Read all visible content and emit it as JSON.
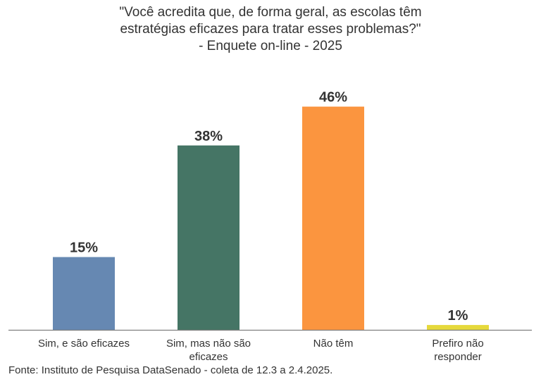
{
  "title_lines": [
    "\"Você acredita que, de forma geral, as escolas têm",
    "estratégias eficazes para tratar esses problemas?\"",
    "- Enquete on-line - 2025"
  ],
  "source": "Fonte: Instituto de Pesquisa DataSenado - coleta de 12.3 a 2.4.2025.",
  "chart_data": {
    "type": "bar",
    "categories": [
      [
        "Sim, e são eficazes"
      ],
      [
        "Sim, mas não são",
        "eficazes"
      ],
      [
        "Não têm"
      ],
      [
        "Prefiro não",
        "responder"
      ]
    ],
    "values": [
      15,
      38,
      46,
      1
    ],
    "data_labels": [
      "15%",
      "38%",
      "46%",
      "1%"
    ],
    "colors": [
      "#6688b2",
      "#457565",
      "#fb953f",
      "#e6d93b"
    ],
    "unit": "%",
    "ylim": [
      0,
      46
    ],
    "grid": false,
    "legend": "none"
  }
}
